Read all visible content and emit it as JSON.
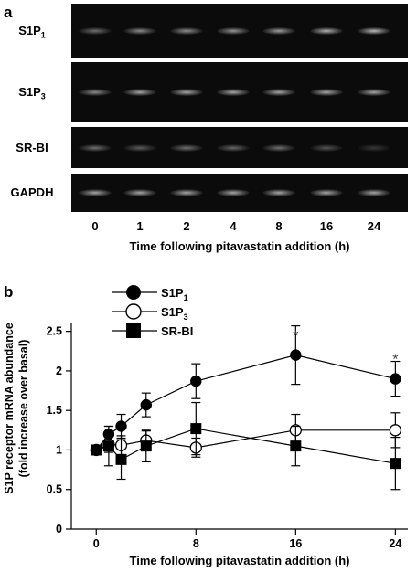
{
  "panel_a": {
    "letter": "a",
    "gels": [
      {
        "label": "S1P",
        "sub": "1",
        "intensities": [
          0.55,
          0.7,
          0.72,
          0.75,
          0.8,
          0.9,
          0.95
        ]
      },
      {
        "label": "S1P",
        "sub": "3",
        "intensities": [
          0.7,
          0.85,
          0.85,
          0.85,
          0.85,
          0.85,
          0.85
        ]
      },
      {
        "label": "SR-BI",
        "sub": "",
        "intensities": [
          0.55,
          0.45,
          0.55,
          0.5,
          0.55,
          0.4,
          0.25
        ]
      },
      {
        "label": "GAPDH",
        "sub": "",
        "intensities": [
          0.85,
          0.85,
          0.85,
          0.85,
          0.85,
          0.85,
          0.85
        ]
      }
    ],
    "lanes": [
      "0",
      "1",
      "2",
      "4",
      "8",
      "16",
      "24"
    ],
    "xlabel": "Time following pitavastatin addition (h)"
  },
  "panel_b": {
    "letter": "b"
  },
  "chart_data": {
    "type": "line",
    "xlabel": "Time following pitavastatin addition (h)",
    "ylabel_line1": "S1P receptor mRNA abundance",
    "ylabel_line2": "(fold increase over basal)",
    "xlim": [
      -2,
      25
    ],
    "ylim": [
      0,
      2.6
    ],
    "xticks": [
      0,
      8,
      16,
      24
    ],
    "yticks": [
      0,
      0.5,
      1,
      1.5,
      2,
      2.5
    ],
    "ytick_labels": [
      "0",
      "0.5",
      "1",
      "1.5",
      "2",
      "2.5"
    ],
    "legend_position": "top-left",
    "series": [
      {
        "name": "S1P",
        "name_sub": "1",
        "marker": "filled-circle",
        "x": [
          0,
          1,
          2,
          4,
          8,
          16,
          24
        ],
        "y": [
          1.0,
          1.2,
          1.3,
          1.57,
          1.87,
          2.2,
          1.9
        ],
        "err": [
          0.0,
          0.1,
          0.15,
          0.15,
          0.22,
          0.37,
          0.22
        ]
      },
      {
        "name": "S1P",
        "name_sub": "3",
        "marker": "open-circle",
        "x": [
          0,
          1,
          2,
          4,
          8,
          16,
          24
        ],
        "y": [
          1.0,
          1.07,
          1.06,
          1.12,
          1.03,
          1.25,
          1.25
        ],
        "err": [
          0.0,
          0.1,
          0.12,
          0.12,
          0.12,
          0.2,
          0.22
        ]
      },
      {
        "name": "SR-BI",
        "name_sub": "",
        "marker": "filled-square",
        "x": [
          0,
          1,
          2,
          4,
          8,
          16,
          24
        ],
        "y": [
          1.0,
          1.05,
          0.88,
          1.05,
          1.27,
          1.05,
          0.83
        ],
        "err": [
          0.0,
          0.25,
          0.25,
          0.2,
          0.33,
          0.25,
          0.33
        ]
      }
    ],
    "annotations": [
      {
        "text": "*",
        "x": 16,
        "y": 2.48
      },
      {
        "text": "*",
        "x": 24,
        "y": 2.18
      }
    ]
  }
}
